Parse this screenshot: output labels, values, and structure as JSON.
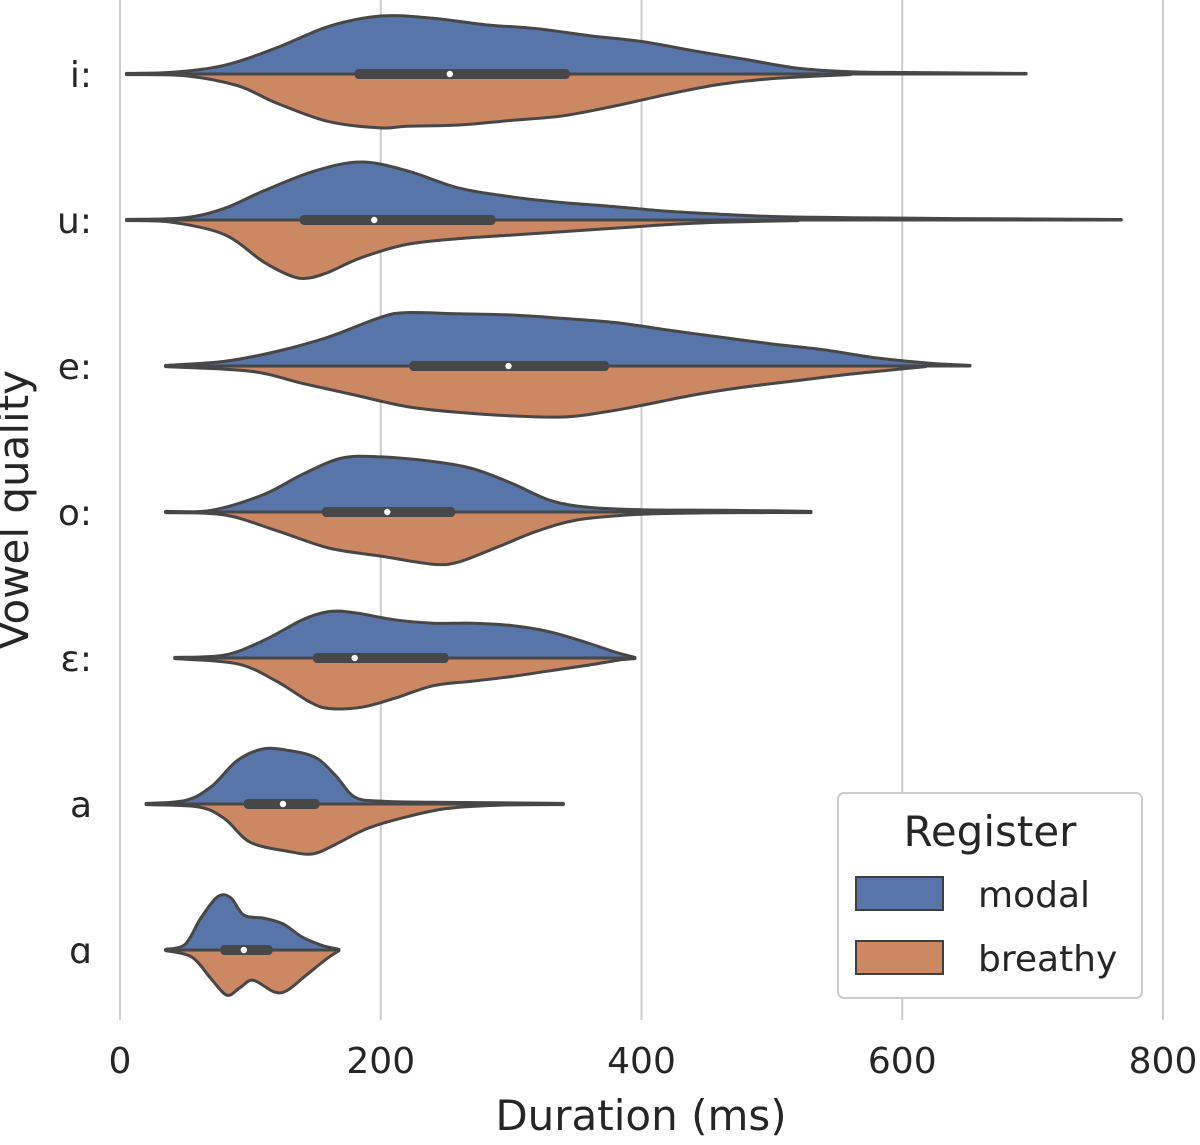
{
  "chart_data": {
    "type": "violin",
    "orientation": "horizontal",
    "split": true,
    "xlabel": "Duration (ms)",
    "ylabel": "Vowel quality",
    "xlim": [
      0,
      800
    ],
    "xticks": [
      0,
      200,
      400,
      600,
      800
    ],
    "grid": "vertical",
    "legend": {
      "title": "Register",
      "placement": "bottom-right",
      "entries": [
        {
          "name": "modal",
          "color": "#5875a9"
        },
        {
          "name": "breathy",
          "color": "#cc8763"
        }
      ]
    },
    "categories": [
      "i:",
      "u:",
      "e:",
      "o:",
      "ɛ:",
      "a",
      "ɑ"
    ],
    "violins": [
      {
        "category": "i:",
        "box": {
          "q1": 180,
          "median": 253,
          "q3": 345
        },
        "modal": {
          "min": 5,
          "max": 695,
          "density": [
            [
              5,
              0.01
            ],
            [
              40,
              0.03
            ],
            [
              80,
              0.15
            ],
            [
              120,
              0.45
            ],
            [
              160,
              0.82
            ],
            [
              200,
              1.0
            ],
            [
              240,
              0.96
            ],
            [
              280,
              0.85
            ],
            [
              320,
              0.78
            ],
            [
              360,
              0.66
            ],
            [
              400,
              0.56
            ],
            [
              440,
              0.4
            ],
            [
              480,
              0.25
            ],
            [
              520,
              0.1
            ],
            [
              560,
              0.04
            ],
            [
              600,
              0.025
            ],
            [
              650,
              0.018
            ],
            [
              695,
              0.01
            ]
          ]
        },
        "breathy": {
          "min": 5,
          "max": 560,
          "density": [
            [
              5,
              0.01
            ],
            [
              50,
              0.03
            ],
            [
              90,
              0.2
            ],
            [
              120,
              0.5
            ],
            [
              160,
              0.82
            ],
            [
              200,
              0.93
            ],
            [
              220,
              0.9
            ],
            [
              260,
              0.88
            ],
            [
              300,
              0.8
            ],
            [
              340,
              0.72
            ],
            [
              380,
              0.55
            ],
            [
              420,
              0.35
            ],
            [
              460,
              0.18
            ],
            [
              500,
              0.08
            ],
            [
              540,
              0.03
            ],
            [
              560,
              0.01
            ]
          ]
        }
      },
      {
        "category": "u:",
        "box": {
          "q1": 138,
          "median": 195,
          "q3": 288
        },
        "modal": {
          "min": 5,
          "max": 768,
          "density": [
            [
              5,
              0.01
            ],
            [
              50,
              0.04
            ],
            [
              80,
              0.2
            ],
            [
              110,
              0.5
            ],
            [
              150,
              0.85
            ],
            [
              185,
              1.0
            ],
            [
              220,
              0.85
            ],
            [
              260,
              0.55
            ],
            [
              300,
              0.4
            ],
            [
              340,
              0.3
            ],
            [
              380,
              0.23
            ],
            [
              420,
              0.15
            ],
            [
              460,
              0.1
            ],
            [
              500,
              0.06
            ],
            [
              560,
              0.04
            ],
            [
              640,
              0.025
            ],
            [
              720,
              0.015
            ],
            [
              768,
              0.008
            ]
          ]
        },
        "breathy": {
          "min": 5,
          "max": 520,
          "density": [
            [
              5,
              0.01
            ],
            [
              40,
              0.04
            ],
            [
              80,
              0.25
            ],
            [
              110,
              0.72
            ],
            [
              132,
              0.97
            ],
            [
              145,
              1.0
            ],
            [
              160,
              0.9
            ],
            [
              185,
              0.65
            ],
            [
              220,
              0.42
            ],
            [
              260,
              0.32
            ],
            [
              300,
              0.26
            ],
            [
              340,
              0.2
            ],
            [
              380,
              0.14
            ],
            [
              420,
              0.08
            ],
            [
              460,
              0.04
            ],
            [
              520,
              0.01
            ]
          ]
        }
      },
      {
        "category": "e:",
        "box": {
          "q1": 222,
          "median": 298,
          "q3": 375
        },
        "modal": {
          "min": 35,
          "max": 652,
          "density": [
            [
              35,
              0.01
            ],
            [
              80,
              0.08
            ],
            [
              120,
              0.25
            ],
            [
              160,
              0.5
            ],
            [
              200,
              0.84
            ],
            [
              220,
              0.92
            ],
            [
              260,
              0.9
            ],
            [
              300,
              0.88
            ],
            [
              340,
              0.82
            ],
            [
              380,
              0.75
            ],
            [
              420,
              0.62
            ],
            [
              460,
              0.5
            ],
            [
              500,
              0.38
            ],
            [
              540,
              0.28
            ],
            [
              580,
              0.14
            ],
            [
              620,
              0.05
            ],
            [
              652,
              0.01
            ]
          ]
        },
        "breathy": {
          "min": 35,
          "max": 618,
          "density": [
            [
              35,
              0.01
            ],
            [
              100,
              0.09
            ],
            [
              140,
              0.3
            ],
            [
              180,
              0.5
            ],
            [
              220,
              0.7
            ],
            [
              260,
              0.8
            ],
            [
              300,
              0.86
            ],
            [
              340,
              0.88
            ],
            [
              370,
              0.8
            ],
            [
              400,
              0.68
            ],
            [
              440,
              0.5
            ],
            [
              480,
              0.36
            ],
            [
              520,
              0.25
            ],
            [
              560,
              0.14
            ],
            [
              600,
              0.05
            ],
            [
              618,
              0.01
            ]
          ]
        }
      },
      {
        "category": "o:",
        "box": {
          "q1": 155,
          "median": 205,
          "q3": 257
        },
        "modal": {
          "min": 35,
          "max": 530,
          "density": [
            [
              35,
              0.01
            ],
            [
              70,
              0.03
            ],
            [
              110,
              0.3
            ],
            [
              140,
              0.65
            ],
            [
              170,
              0.93
            ],
            [
              200,
              0.95
            ],
            [
              240,
              0.87
            ],
            [
              270,
              0.75
            ],
            [
              300,
              0.5
            ],
            [
              330,
              0.2
            ],
            [
              360,
              0.08
            ],
            [
              400,
              0.04
            ],
            [
              460,
              0.03
            ],
            [
              500,
              0.02
            ],
            [
              530,
              0.01
            ]
          ]
        },
        "breathy": {
          "min": 35,
          "max": 530,
          "density": [
            [
              35,
              0.01
            ],
            [
              80,
              0.05
            ],
            [
              120,
              0.32
            ],
            [
              160,
              0.62
            ],
            [
              200,
              0.76
            ],
            [
              240,
              0.9
            ],
            [
              260,
              0.86
            ],
            [
              290,
              0.6
            ],
            [
              320,
              0.33
            ],
            [
              350,
              0.14
            ],
            [
              390,
              0.05
            ],
            [
              430,
              0.02
            ],
            [
              480,
              0.01
            ],
            [
              530,
              0.01
            ]
          ]
        }
      },
      {
        "category": "ɛ:",
        "box": {
          "q1": 148,
          "median": 180,
          "q3": 252
        },
        "modal": {
          "min": 42,
          "max": 395,
          "density": [
            [
              42,
              0.01
            ],
            [
              80,
              0.05
            ],
            [
              110,
              0.3
            ],
            [
              140,
              0.66
            ],
            [
              160,
              0.8
            ],
            [
              180,
              0.78
            ],
            [
              210,
              0.66
            ],
            [
              240,
              0.6
            ],
            [
              270,
              0.6
            ],
            [
              300,
              0.56
            ],
            [
              330,
              0.45
            ],
            [
              360,
              0.25
            ],
            [
              380,
              0.1
            ],
            [
              395,
              0.01
            ]
          ]
        },
        "breathy": {
          "min": 42,
          "max": 395,
          "density": [
            [
              42,
              0.01
            ],
            [
              90,
              0.1
            ],
            [
              120,
              0.4
            ],
            [
              145,
              0.75
            ],
            [
              160,
              0.87
            ],
            [
              185,
              0.85
            ],
            [
              210,
              0.7
            ],
            [
              240,
              0.48
            ],
            [
              270,
              0.4
            ],
            [
              300,
              0.32
            ],
            [
              330,
              0.22
            ],
            [
              360,
              0.12
            ],
            [
              385,
              0.03
            ],
            [
              395,
              0.01
            ]
          ]
        }
      },
      {
        "category": "a",
        "box": {
          "q1": 95,
          "median": 125,
          "q3": 153
        },
        "modal": {
          "min": 20,
          "max": 340,
          "density": [
            [
              20,
              0.01
            ],
            [
              50,
              0.06
            ],
            [
              70,
              0.3
            ],
            [
              90,
              0.75
            ],
            [
              110,
              0.95
            ],
            [
              130,
              0.92
            ],
            [
              150,
              0.8
            ],
            [
              165,
              0.5
            ],
            [
              180,
              0.12
            ],
            [
              200,
              0.05
            ],
            [
              240,
              0.03
            ],
            [
              290,
              0.02
            ],
            [
              340,
              0.01
            ]
          ]
        },
        "breathy": {
          "min": 20,
          "max": 340,
          "density": [
            [
              20,
              0.01
            ],
            [
              60,
              0.05
            ],
            [
              80,
              0.25
            ],
            [
              100,
              0.66
            ],
            [
              130,
              0.82
            ],
            [
              148,
              0.86
            ],
            [
              165,
              0.7
            ],
            [
              190,
              0.42
            ],
            [
              220,
              0.22
            ],
            [
              250,
              0.08
            ],
            [
              290,
              0.02
            ],
            [
              340,
              0.01
            ]
          ]
        }
      },
      {
        "category": "ɑ",
        "box": {
          "q1": 77,
          "median": 95,
          "q3": 117
        },
        "modal": {
          "min": 35,
          "max": 168,
          "density": [
            [
              35,
              0.01
            ],
            [
              50,
              0.1
            ],
            [
              62,
              0.55
            ],
            [
              75,
              0.92
            ],
            [
              85,
              0.9
            ],
            [
              95,
              0.6
            ],
            [
              110,
              0.55
            ],
            [
              125,
              0.45
            ],
            [
              140,
              0.22
            ],
            [
              155,
              0.08
            ],
            [
              168,
              0.01
            ]
          ]
        },
        "breathy": {
          "min": 35,
          "max": 168,
          "density": [
            [
              35,
              0.01
            ],
            [
              55,
              0.12
            ],
            [
              70,
              0.5
            ],
            [
              82,
              0.78
            ],
            [
              92,
              0.65
            ],
            [
              102,
              0.52
            ],
            [
              118,
              0.72
            ],
            [
              128,
              0.7
            ],
            [
              142,
              0.45
            ],
            [
              158,
              0.16
            ],
            [
              168,
              0.01
            ]
          ]
        }
      }
    ]
  }
}
